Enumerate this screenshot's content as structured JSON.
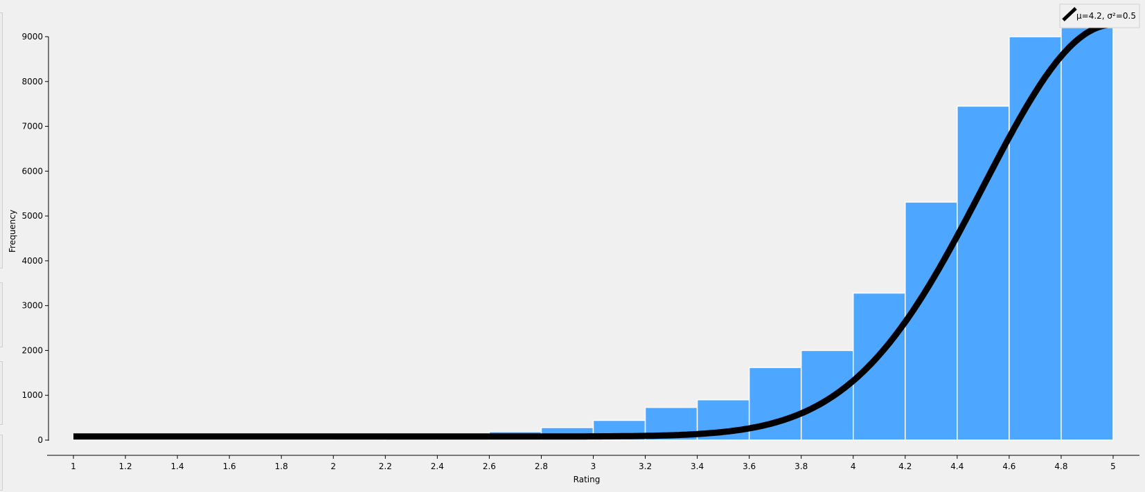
{
  "chart_data": {
    "type": "bar",
    "xlabel": "Rating",
    "ylabel": "Frequency",
    "xlim": [
      1,
      5
    ],
    "ylim": [
      0,
      9000
    ],
    "x_ticks": [
      1,
      1.2,
      1.4,
      1.6,
      1.8,
      2,
      2.2,
      2.4,
      2.6,
      2.8,
      3,
      3.2,
      3.4,
      3.6,
      3.8,
      4,
      4.2,
      4.4,
      4.6,
      4.8,
      5
    ],
    "x_tick_labels": [
      "1",
      "1.2",
      "1.4",
      "1.6",
      "1.8",
      "2",
      "2.2",
      "2.4",
      "2.6",
      "2.8",
      "3",
      "3.2",
      "3.4",
      "3.6",
      "3.8",
      "4",
      "4.2",
      "4.4",
      "4.6",
      "4.8",
      "5"
    ],
    "y_ticks": [
      0,
      1000,
      2000,
      3000,
      4000,
      5000,
      6000,
      7000,
      8000,
      9000
    ],
    "y_tick_labels": [
      "0",
      "1000",
      "2000",
      "3000",
      "4000",
      "5000",
      "6000",
      "7000",
      "8000",
      "9000"
    ],
    "bins": [
      {
        "x0": 1.0,
        "x1": 1.2,
        "value": 20
      },
      {
        "x0": 1.2,
        "x1": 1.4,
        "value": 15
      },
      {
        "x0": 1.4,
        "x1": 1.6,
        "value": 15
      },
      {
        "x0": 1.6,
        "x1": 1.8,
        "value": 15
      },
      {
        "x0": 1.8,
        "x1": 2.0,
        "value": 20
      },
      {
        "x0": 2.0,
        "x1": 2.2,
        "value": 25
      },
      {
        "x0": 2.2,
        "x1": 2.4,
        "value": 30
      },
      {
        "x0": 2.4,
        "x1": 2.6,
        "value": 40
      },
      {
        "x0": 2.6,
        "x1": 2.8,
        "value": 190
      },
      {
        "x0": 2.8,
        "x1": 3.0,
        "value": 280
      },
      {
        "x0": 3.0,
        "x1": 3.2,
        "value": 440
      },
      {
        "x0": 3.2,
        "x1": 3.4,
        "value": 730
      },
      {
        "x0": 3.4,
        "x1": 3.6,
        "value": 900
      },
      {
        "x0": 3.6,
        "x1": 3.8,
        "value": 1620
      },
      {
        "x0": 3.8,
        "x1": 4.0,
        "value": 2000
      },
      {
        "x0": 4.0,
        "x1": 4.2,
        "value": 3280
      },
      {
        "x0": 4.2,
        "x1": 4.4,
        "value": 5310
      },
      {
        "x0": 4.4,
        "x1": 4.6,
        "value": 7450
      },
      {
        "x0": 4.6,
        "x1": 4.8,
        "value": 9000
      },
      {
        "x0": 4.8,
        "x1": 5.0,
        "value": 9200
      }
    ],
    "fit_curve": {
      "name": "μ=4.2, σ²=0.5",
      "mu": 4.2,
      "sigma2": 0.5,
      "peak": 9270,
      "baseline": 80,
      "color": "#000000"
    },
    "bar_color": "#4da6ff",
    "grid": false,
    "legend_position": "top-right"
  }
}
